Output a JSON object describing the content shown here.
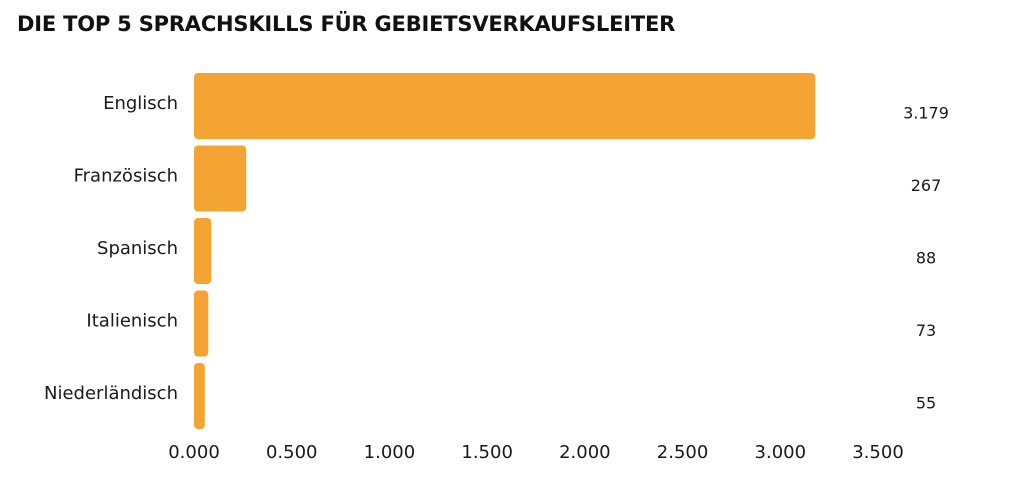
{
  "chart_data": {
    "type": "bar",
    "orientation": "horizontal",
    "title": "DIE TOP 5 SPRACHSKILLS FÜR GEBIETSVERKAUFSLEITER",
    "categories": [
      "Englisch",
      "Französisch",
      "Spanisch",
      "Italienisch",
      "Niederländisch"
    ],
    "values": [
      3179,
      267,
      88,
      73,
      55
    ],
    "value_labels": [
      "3.179",
      "267",
      "88",
      "73",
      "55"
    ],
    "xlim": [
      0,
      3500
    ],
    "xticks": [
      0,
      500,
      1000,
      1500,
      2000,
      2500,
      3000,
      3500
    ],
    "xtick_labels": [
      "0.000",
      "0.500",
      "1.000",
      "1.500",
      "2.000",
      "2.500",
      "3.000",
      "3.500"
    ],
    "xlabel": "",
    "ylabel": "",
    "grid": false,
    "legend": "none",
    "colors": {
      "bar": "#F4A433"
    }
  }
}
